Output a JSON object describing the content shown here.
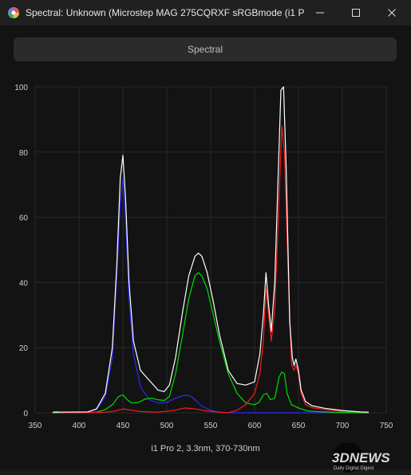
{
  "window": {
    "title": "Spectral: Unknown (Microstep MAG 275CQRXF sRGBmode (i1 P…",
    "minimize_glyph": "—",
    "maximize_glyph": "☐",
    "close_glyph": "✕"
  },
  "tab": {
    "label": "Spectral"
  },
  "xcaption": "i1 Pro 2, 3.3nm, 370-730nm",
  "watermark": {
    "main": "3DNEWS",
    "sub": "Daily Digital Digest"
  },
  "chart_data": {
    "type": "line",
    "xlim": [
      350,
      750
    ],
    "ylim": [
      0,
      100
    ],
    "xticks": [
      350,
      400,
      450,
      500,
      550,
      600,
      650,
      700,
      750
    ],
    "yticks": [
      0,
      20,
      40,
      60,
      80,
      100
    ],
    "grid": true,
    "series": [
      {
        "color": "#2a2aff",
        "points": [
          [
            370,
            0
          ],
          [
            410,
            0.2
          ],
          [
            420,
            1
          ],
          [
            430,
            5
          ],
          [
            438,
            17
          ],
          [
            443,
            42
          ],
          [
            447,
            64
          ],
          [
            450,
            72
          ],
          [
            453,
            60
          ],
          [
            457,
            35
          ],
          [
            462,
            18
          ],
          [
            470,
            8
          ],
          [
            480,
            4
          ],
          [
            490,
            3
          ],
          [
            500,
            3.2
          ],
          [
            510,
            4.5
          ],
          [
            520,
            5.4
          ],
          [
            527,
            5.2
          ],
          [
            533,
            3.8
          ],
          [
            540,
            2
          ],
          [
            550,
            0.8
          ],
          [
            560,
            0.2
          ],
          [
            580,
            0
          ],
          [
            730,
            0
          ]
        ]
      },
      {
        "color": "#00dd00",
        "points": [
          [
            370,
            0
          ],
          [
            420,
            0.2
          ],
          [
            430,
            1
          ],
          [
            438,
            2.5
          ],
          [
            445,
            5
          ],
          [
            450,
            5.5
          ],
          [
            455,
            4
          ],
          [
            460,
            3
          ],
          [
            468,
            3.2
          ],
          [
            475,
            4.2
          ],
          [
            482,
            4.5
          ],
          [
            490,
            4
          ],
          [
            497,
            3.8
          ],
          [
            503,
            5
          ],
          [
            510,
            12
          ],
          [
            518,
            24
          ],
          [
            525,
            35
          ],
          [
            532,
            42
          ],
          [
            536,
            43
          ],
          [
            540,
            42
          ],
          [
            546,
            38
          ],
          [
            553,
            30
          ],
          [
            560,
            22
          ],
          [
            570,
            12
          ],
          [
            580,
            6
          ],
          [
            590,
            3
          ],
          [
            600,
            2.5
          ],
          [
            605,
            3.2
          ],
          [
            610,
            5.5
          ],
          [
            614,
            6
          ],
          [
            618,
            4
          ],
          [
            623,
            4.5
          ],
          [
            628,
            11
          ],
          [
            631,
            12.5
          ],
          [
            634,
            12
          ],
          [
            637,
            6
          ],
          [
            642,
            2.5
          ],
          [
            650,
            1.5
          ],
          [
            660,
            0.6
          ],
          [
            670,
            0.4
          ],
          [
            700,
            0.1
          ],
          [
            730,
            0
          ]
        ]
      },
      {
        "color": "#ff1a1a",
        "points": [
          [
            370,
            0.2
          ],
          [
            375,
            0.4
          ],
          [
            380,
            0.1
          ],
          [
            400,
            0
          ],
          [
            430,
            0.2
          ],
          [
            440,
            0.5
          ],
          [
            450,
            1.2
          ],
          [
            460,
            0.8
          ],
          [
            470,
            0.4
          ],
          [
            490,
            0.2
          ],
          [
            510,
            0.8
          ],
          [
            520,
            1.5
          ],
          [
            530,
            1.3
          ],
          [
            545,
            0.6
          ],
          [
            560,
            0.2
          ],
          [
            570,
            0
          ],
          [
            580,
            0.8
          ],
          [
            590,
            2.5
          ],
          [
            600,
            6
          ],
          [
            606,
            12
          ],
          [
            610,
            22
          ],
          [
            613,
            38
          ],
          [
            616,
            30
          ],
          [
            619,
            22
          ],
          [
            623,
            32
          ],
          [
            627,
            60
          ],
          [
            631,
            88
          ],
          [
            634,
            80
          ],
          [
            638,
            45
          ],
          [
            642,
            15
          ],
          [
            645,
            13
          ],
          [
            647,
            14.5
          ],
          [
            650,
            12
          ],
          [
            653,
            6
          ],
          [
            658,
            2.5
          ],
          [
            665,
            1.6
          ],
          [
            680,
            1
          ],
          [
            700,
            0.5
          ],
          [
            720,
            0.3
          ],
          [
            730,
            0.2
          ]
        ]
      },
      {
        "color": "#ffffff",
        "points": [
          [
            370,
            0.2
          ],
          [
            410,
            0.3
          ],
          [
            420,
            1.2
          ],
          [
            430,
            6
          ],
          [
            438,
            20
          ],
          [
            443,
            45
          ],
          [
            447,
            72
          ],
          [
            450,
            79
          ],
          [
            453,
            66
          ],
          [
            457,
            40
          ],
          [
            462,
            22
          ],
          [
            470,
            13
          ],
          [
            480,
            10
          ],
          [
            490,
            7
          ],
          [
            497,
            6.5
          ],
          [
            503,
            8.5
          ],
          [
            510,
            17
          ],
          [
            518,
            31
          ],
          [
            525,
            42
          ],
          [
            532,
            48
          ],
          [
            536,
            49
          ],
          [
            540,
            48
          ],
          [
            546,
            43
          ],
          [
            553,
            34
          ],
          [
            560,
            24
          ],
          [
            570,
            13
          ],
          [
            580,
            9
          ],
          [
            590,
            8.5
          ],
          [
            600,
            9.5
          ],
          [
            606,
            18
          ],
          [
            610,
            30
          ],
          [
            613,
            43
          ],
          [
            616,
            33
          ],
          [
            619,
            25
          ],
          [
            623,
            40
          ],
          [
            627,
            74
          ],
          [
            630,
            99
          ],
          [
            633,
            100
          ],
          [
            636,
            75
          ],
          [
            640,
            28
          ],
          [
            643,
            17
          ],
          [
            645,
            14.5
          ],
          [
            647,
            16.5
          ],
          [
            650,
            13
          ],
          [
            653,
            7
          ],
          [
            658,
            3.5
          ],
          [
            665,
            2.2
          ],
          [
            680,
            1.4
          ],
          [
            700,
            0.7
          ],
          [
            720,
            0.3
          ],
          [
            730,
            0.2
          ]
        ]
      }
    ]
  }
}
